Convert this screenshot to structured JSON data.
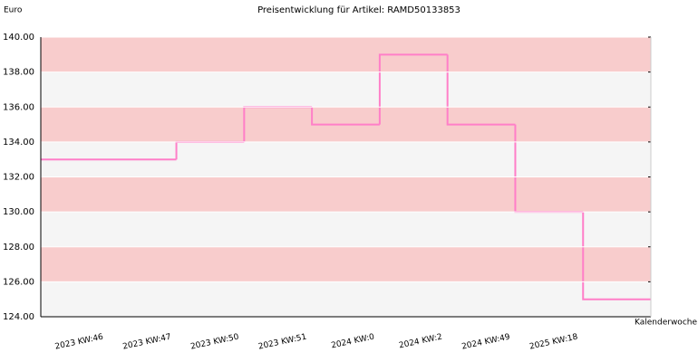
{
  "chart_data": {
    "type": "step",
    "title": "Preisentwicklung für Artikel: RAMD50133853",
    "y_label": "Euro",
    "x_label": "Kalenderwoche",
    "categories": [
      "2023 KW:46",
      "2023 KW:47",
      "2023 KW:50",
      "2023 KW:51",
      "2024 KW:0",
      "2024 KW:2",
      "2024 KW:49",
      "2025 KW:18"
    ],
    "values": [
      133,
      134,
      136,
      135,
      139,
      135,
      130,
      125
    ],
    "color": "#ff7fc8",
    "band_colors": [
      "#f8cccc",
      "#f5f5f5"
    ],
    "ylim": [
      124,
      140
    ],
    "yticks": [
      {
        "value": 124,
        "label": "124.00"
      },
      {
        "value": 126,
        "label": "126.00"
      },
      {
        "value": 128,
        "label": "128.00"
      },
      {
        "value": 130,
        "label": "130.00"
      },
      {
        "value": 132,
        "label": "132.00"
      },
      {
        "value": 134,
        "label": "134.00"
      },
      {
        "value": 136,
        "label": "136.00"
      },
      {
        "value": 138,
        "label": "138.00"
      },
      {
        "value": 140,
        "label": "140.00"
      }
    ]
  }
}
